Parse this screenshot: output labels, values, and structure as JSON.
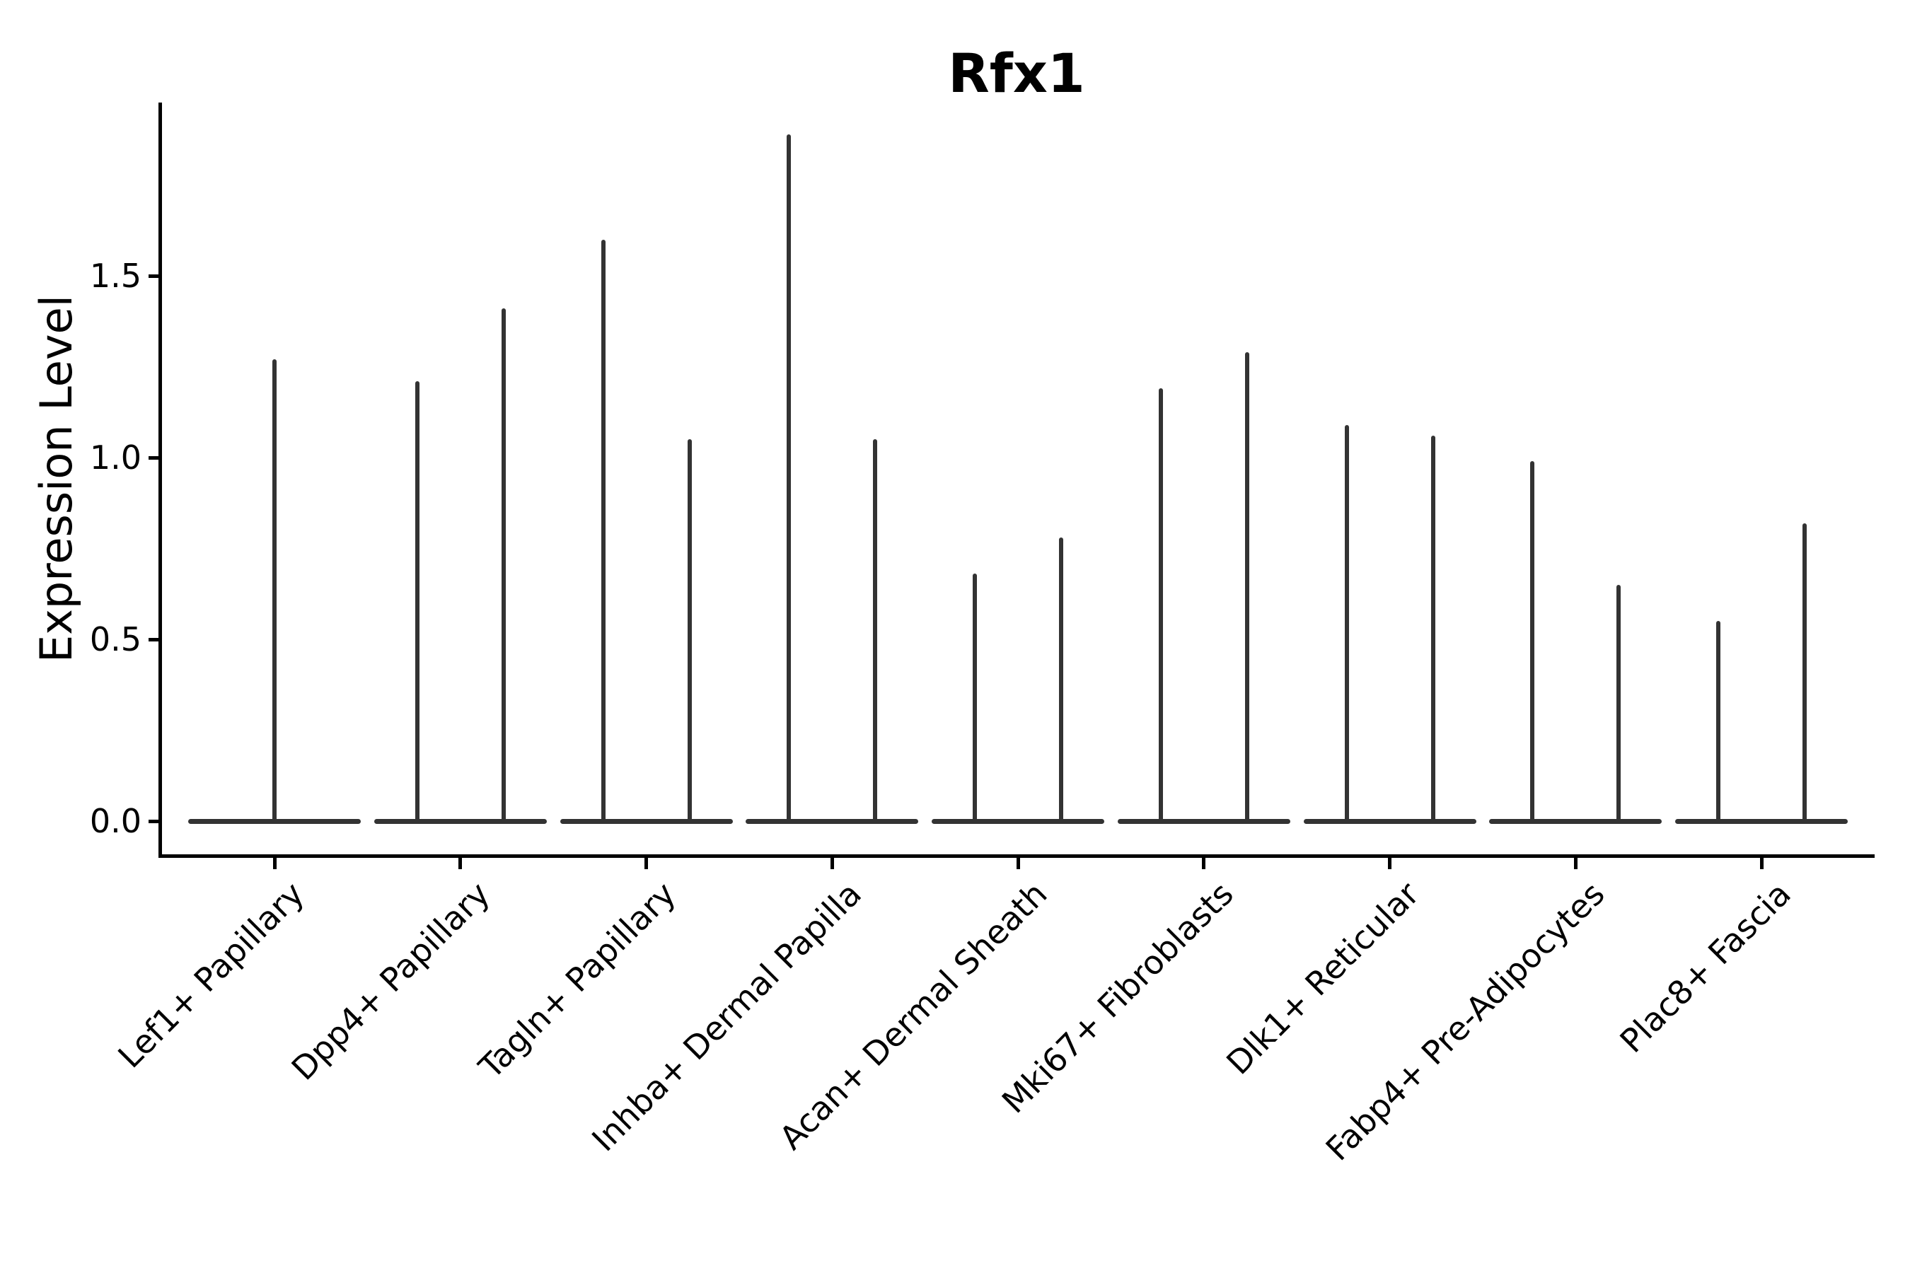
{
  "chart_data": {
    "type": "violin",
    "title": "Rfx1",
    "ylabel": "Expression Level",
    "xlabel": "",
    "yticks": [
      0.0,
      0.5,
      1.0,
      1.5
    ],
    "ytick_labels": [
      "0.0",
      "0.5",
      "1.0",
      "1.5"
    ],
    "ylim": [
      -0.095,
      1.978
    ],
    "grid": false,
    "legend": null,
    "categories": [
      "Lef1+ Papillary",
      "Dpp4+ Papillary",
      "Tagln+ Papillary",
      "Inhba+ Dermal Papilla",
      "Acan+ Dermal Sheath",
      "Mki67+ Fibroblasts",
      "Dlk1+ Reticular",
      "Fabp4+ Pre-Adipocytes",
      "Plac8+ Fascia"
    ],
    "violins": [
      {
        "category": "Lef1+ Papillary",
        "max_values": [
          1.27
        ]
      },
      {
        "category": "Dpp4+ Papillary",
        "max_values": [
          1.21,
          1.41
        ]
      },
      {
        "category": "Tagln+ Papillary",
        "max_values": [
          1.6,
          1.05
        ]
      },
      {
        "category": "Inhba+ Dermal Papilla",
        "max_values": [
          1.89,
          1.05
        ]
      },
      {
        "category": "Acan+ Dermal Sheath",
        "max_values": [
          0.68,
          0.78
        ]
      },
      {
        "category": "Mki67+ Fibroblasts",
        "max_values": [
          1.19,
          1.29
        ]
      },
      {
        "category": "Dlk1+ Reticular",
        "max_values": [
          1.09,
          1.06
        ]
      },
      {
        "category": "Fabp4+ Pre-Adipocytes",
        "max_values": [
          0.99,
          0.65
        ]
      },
      {
        "category": "Plac8+ Fascia",
        "max_values": [
          0.55,
          0.82
        ]
      }
    ],
    "shape_note": "Each violin collapses to a flat bar at expression 0 with a thin vertical tail rising to its maximum value; categories with two violins show them side by side."
  },
  "colors": {
    "violin": "#333333",
    "axis": "#000000",
    "text": "#000000",
    "background": "#ffffff"
  }
}
